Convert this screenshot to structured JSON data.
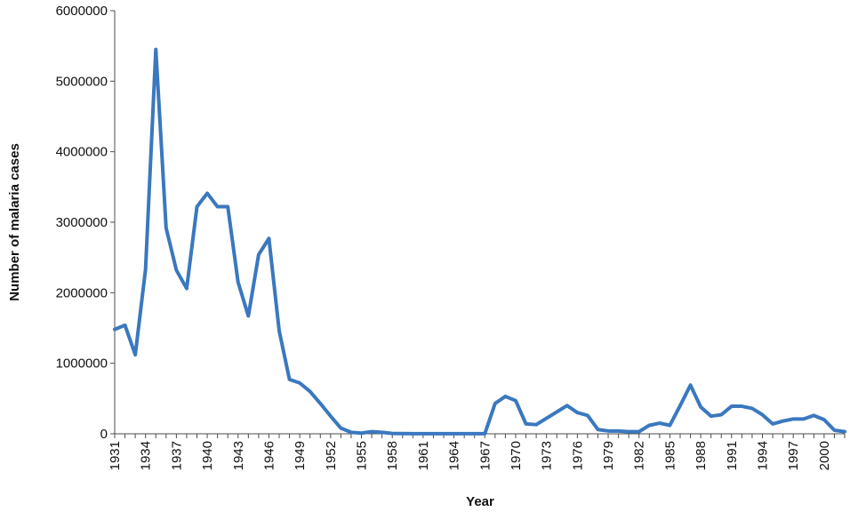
{
  "chart_data": {
    "type": "line",
    "title": "",
    "xlabel": "Year",
    "ylabel": "Number of malaria cases",
    "x_start": 1931,
    "x_end": 2002,
    "xlim": [
      1931,
      2002
    ],
    "ylim": [
      0,
      6000000
    ],
    "y_ticks": [
      0,
      1000000,
      2000000,
      3000000,
      4000000,
      5000000,
      6000000
    ],
    "y_tick_labels": [
      "0",
      "1000000",
      "2000000",
      "3000000",
      "4000000",
      "5000000",
      "6000000"
    ],
    "x_ticks": [
      1931,
      1934,
      1937,
      1940,
      1943,
      1946,
      1949,
      1952,
      1955,
      1958,
      1961,
      1964,
      1967,
      1970,
      1973,
      1976,
      1979,
      1982,
      1985,
      1988,
      1991,
      1994,
      1997,
      2000
    ],
    "x_tick_labels": [
      "1931",
      "1934",
      "1937",
      "1940",
      "1943",
      "1946",
      "1949",
      "1952",
      "1955",
      "1958",
      "1961",
      "1964",
      "1967",
      "1970",
      "1973",
      "1976",
      "1979",
      "1982",
      "1985",
      "1988",
      "1991",
      "1994",
      "1997",
      "2000"
    ],
    "grid": false,
    "legend": "none",
    "color": "#3a78bf",
    "series": [
      {
        "x": [
          1931,
          1932,
          1933,
          1934,
          1935,
          1936,
          1937,
          1938,
          1939,
          1940,
          1941,
          1942,
          1943,
          1944,
          1945,
          1946,
          1947,
          1948,
          1949,
          1950,
          1951,
          1952,
          1953,
          1954,
          1955,
          1956,
          1957,
          1958,
          1959,
          1960,
          1961,
          1962,
          1963,
          1964,
          1965,
          1966,
          1967,
          1968,
          1969,
          1970,
          1971,
          1972,
          1973,
          1974,
          1975,
          1976,
          1977,
          1978,
          1979,
          1980,
          1981,
          1982,
          1983,
          1984,
          1985,
          1986,
          1987,
          1988,
          1989,
          1990,
          1991,
          1992,
          1993,
          1994,
          1995,
          1996,
          1997,
          1998,
          1999,
          2000,
          2001,
          2002
        ],
        "values": [
          1480000,
          1540000,
          1120000,
          2330000,
          5450000,
          2920000,
          2320000,
          2060000,
          3220000,
          3410000,
          3220000,
          3220000,
          2150000,
          1670000,
          2540000,
          2770000,
          1460000,
          770000,
          720000,
          600000,
          430000,
          250000,
          80000,
          20000,
          10000,
          30000,
          20000,
          5000,
          3000,
          2000,
          2000,
          1000,
          1000,
          1000,
          1000,
          1000,
          1000,
          430000,
          530000,
          470000,
          140000,
          130000,
          220000,
          310000,
          400000,
          300000,
          260000,
          60000,
          40000,
          40000,
          30000,
          30000,
          120000,
          150000,
          120000,
          400000,
          690000,
          380000,
          250000,
          270000,
          390000,
          390000,
          360000,
          270000,
          140000,
          180000,
          210000,
          210000,
          260000,
          200000,
          50000,
          30000
        ]
      }
    ]
  }
}
